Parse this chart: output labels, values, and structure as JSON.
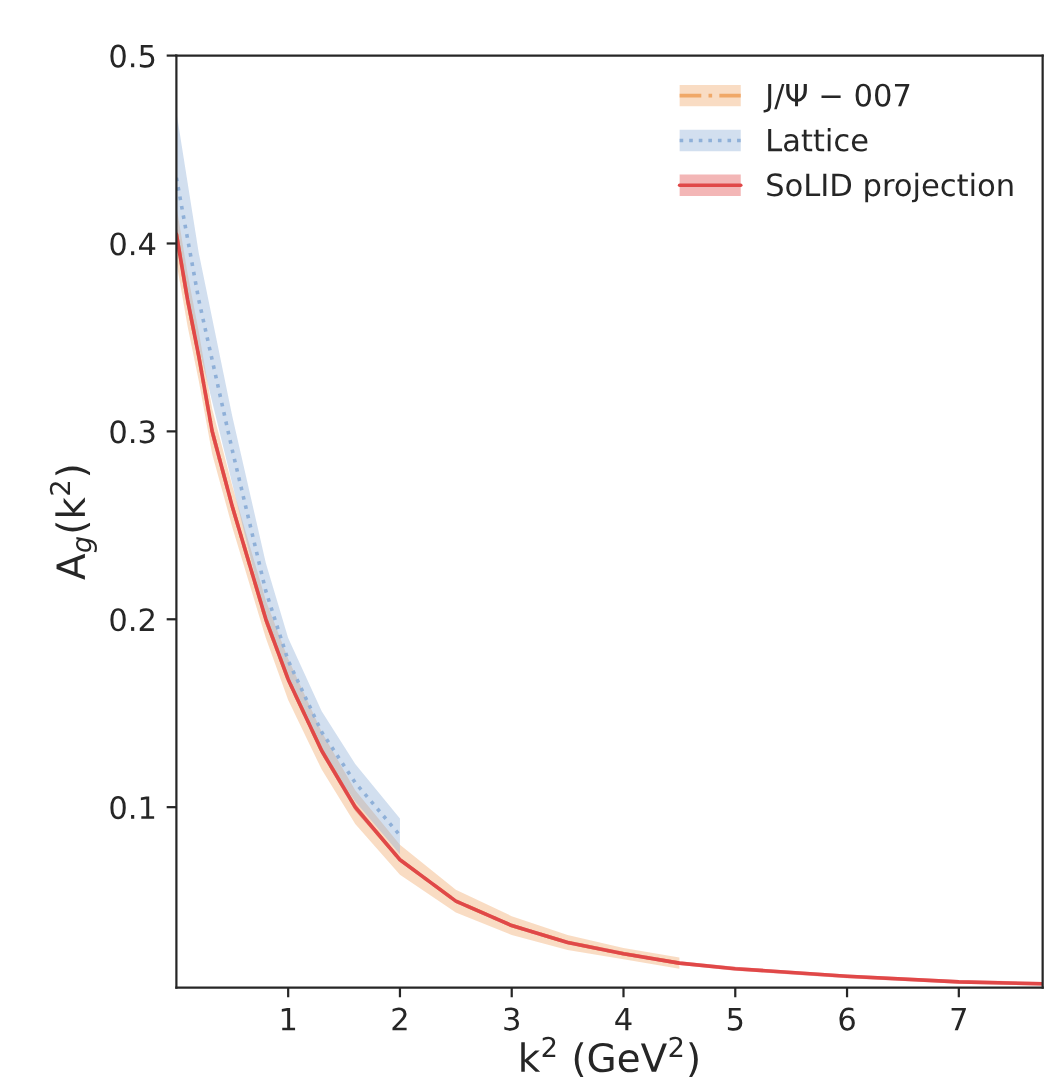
{
  "chart_data": {
    "type": "line",
    "xlabel": "k$^{2}$ (GeV$^{2}$)",
    "ylabel": "A$_{g}$(k$^{2}$)",
    "xlim": [
      0,
      7.75
    ],
    "ylim": [
      0.004,
      0.5
    ],
    "xticks": [
      1,
      2,
      3,
      4,
      5,
      6,
      7
    ],
    "yticks": [
      0.1,
      0.2,
      0.3,
      0.4,
      0.5
    ],
    "grid": false,
    "legend": "top right",
    "marker": "none",
    "series": [
      {
        "name": "J/Ψ − 007",
        "color": "#f0a868",
        "line_style": "dashed",
        "x": [
          0,
          0.1,
          0.2,
          0.32,
          0.5,
          0.8,
          1.0,
          1.3,
          1.6,
          2.0,
          2.5,
          3,
          3.5,
          4,
          4.5
        ],
        "values": [
          0.405,
          0.37,
          0.34,
          0.3,
          0.26,
          0.2,
          0.168,
          0.13,
          0.1,
          0.072,
          0.05,
          0.037,
          0.028,
          0.022,
          0.017
        ],
        "lower": [
          0.39,
          0.356,
          0.327,
          0.288,
          0.249,
          0.19,
          0.157,
          0.12,
          0.091,
          0.064,
          0.044,
          0.032,
          0.024,
          0.019,
          0.014
        ],
        "upper": [
          0.42,
          0.384,
          0.353,
          0.312,
          0.271,
          0.21,
          0.179,
          0.14,
          0.109,
          0.08,
          0.056,
          0.042,
          0.032,
          0.025,
          0.02
        ]
      },
      {
        "name": "Lattice",
        "color": "#8fb0d8",
        "line_style": "dotted",
        "x": [
          0,
          0.2,
          0.5,
          0.8,
          1.0,
          1.3,
          1.6,
          2.0
        ],
        "values": [
          0.435,
          0.37,
          0.29,
          0.215,
          0.178,
          0.14,
          0.113,
          0.085
        ],
        "lower": [
          0.4,
          0.345,
          0.272,
          0.2,
          0.166,
          0.129,
          0.103,
          0.075
        ],
        "upper": [
          0.47,
          0.395,
          0.308,
          0.23,
          0.19,
          0.151,
          0.123,
          0.094
        ]
      },
      {
        "name": "SoLID projection",
        "color": "#e04848",
        "line_style": "solid",
        "x": [
          0,
          0.1,
          0.2,
          0.32,
          0.5,
          0.8,
          1.0,
          1.3,
          1.6,
          2.0,
          2.5,
          3,
          3.5,
          4,
          4.5,
          5,
          6,
          7,
          7.75
        ],
        "values": [
          0.405,
          0.37,
          0.34,
          0.3,
          0.26,
          0.2,
          0.168,
          0.13,
          0.1,
          0.072,
          0.05,
          0.037,
          0.028,
          0.022,
          0.017,
          0.014,
          0.01,
          0.007,
          0.006
        ],
        "lower": [
          0.4,
          0.365,
          0.336,
          0.296,
          0.257,
          0.197,
          0.166,
          0.128,
          0.098,
          0.071,
          0.049,
          0.036,
          0.027,
          0.021,
          0.016,
          0.013,
          0.009,
          0.006,
          0.005
        ],
        "upper": [
          0.41,
          0.375,
          0.344,
          0.304,
          0.263,
          0.203,
          0.17,
          0.132,
          0.102,
          0.073,
          0.051,
          0.038,
          0.029,
          0.023,
          0.018,
          0.015,
          0.011,
          0.008,
          0.007
        ]
      }
    ]
  }
}
